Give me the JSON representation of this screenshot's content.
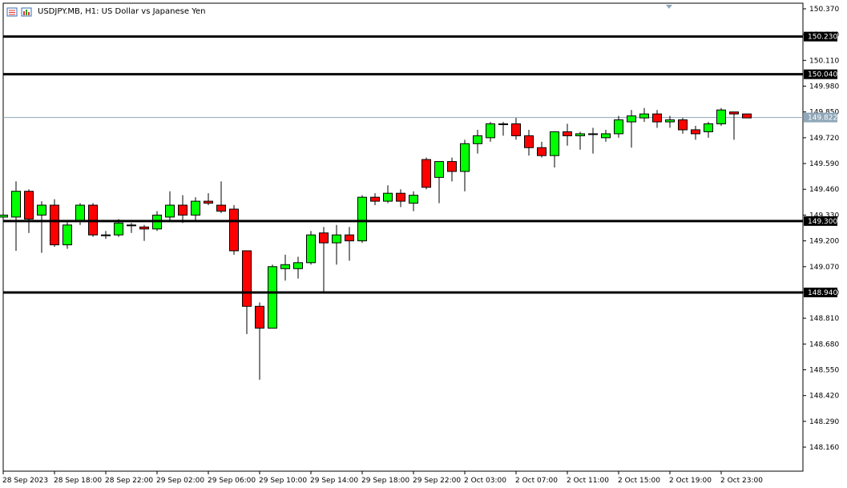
{
  "window": {
    "title": "USDJPY.MB, H1:  US Dollar vs Japanese Yen"
  },
  "colors": {
    "bull": "#00ff00",
    "bear": "#ff0000",
    "candle_outline": "#000000",
    "level_line": "#000000",
    "bid_line": "#8fa7b8",
    "grid": "none"
  },
  "icons": [
    "chart-window-icons"
  ],
  "chart_data": {
    "type": "candlestick",
    "symbol": "USDJPY.MB",
    "timeframe": "H1",
    "ylim": [
      148.1,
      150.4
    ],
    "y_ticks": [
      "150.370",
      "150.240",
      "150.110",
      "149.980",
      "149.850",
      "149.720",
      "149.590",
      "149.460",
      "149.330",
      "149.200",
      "149.070",
      "148.940",
      "148.810",
      "148.680",
      "148.550",
      "148.420",
      "148.290",
      "148.160"
    ],
    "x_ticks": [
      {
        "index": 0,
        "label": "28 Sep 2023"
      },
      {
        "index": 4,
        "label": "28 Sep 18:00"
      },
      {
        "index": 8,
        "label": "28 Sep 22:00"
      },
      {
        "index": 12,
        "label": "29 Sep 02:00"
      },
      {
        "index": 16,
        "label": "29 Sep 06:00"
      },
      {
        "index": 20,
        "label": "29 Sep 10:00"
      },
      {
        "index": 24,
        "label": "29 Sep 14:00"
      },
      {
        "index": 28,
        "label": "29 Sep 18:00"
      },
      {
        "index": 32,
        "label": "29 Sep 22:00"
      },
      {
        "index": 36,
        "label": "2 Oct 03:00"
      },
      {
        "index": 40,
        "label": "2 Oct 07:00"
      },
      {
        "index": 44,
        "label": "2 Oct 11:00"
      },
      {
        "index": 48,
        "label": "2 Oct 15:00"
      },
      {
        "index": 52,
        "label": "2 Oct 19:00"
      },
      {
        "index": 56,
        "label": "2 Oct 23:00"
      }
    ],
    "levels": [
      {
        "price": 150.23,
        "label": "150.230"
      },
      {
        "price": 150.04,
        "label": "150.040"
      },
      {
        "price": 149.3,
        "label": "149.300"
      },
      {
        "price": 148.94,
        "label": "148.940"
      }
    ],
    "bid": {
      "price": 149.822,
      "label": "149.822"
    },
    "candles": [
      {
        "o": 149.32,
        "h": 149.34,
        "l": 149.3,
        "c": 149.33
      },
      {
        "o": 149.32,
        "h": 149.5,
        "l": 149.15,
        "c": 149.45
      },
      {
        "o": 149.45,
        "h": 149.46,
        "l": 149.24,
        "c": 149.31
      },
      {
        "o": 149.33,
        "h": 149.4,
        "l": 149.14,
        "c": 149.38
      },
      {
        "o": 149.38,
        "h": 149.41,
        "l": 149.17,
        "c": 149.18
      },
      {
        "o": 149.18,
        "h": 149.3,
        "l": 149.16,
        "c": 149.28
      },
      {
        "o": 149.3,
        "h": 149.39,
        "l": 149.28,
        "c": 149.38
      },
      {
        "o": 149.38,
        "h": 149.39,
        "l": 149.22,
        "c": 149.23
      },
      {
        "o": 149.23,
        "h": 149.25,
        "l": 149.21,
        "c": 149.23
      },
      {
        "o": 149.23,
        "h": 149.31,
        "l": 149.22,
        "c": 149.29
      },
      {
        "o": 149.28,
        "h": 149.29,
        "l": 149.24,
        "c": 149.28
      },
      {
        "o": 149.27,
        "h": 149.28,
        "l": 149.2,
        "c": 149.26
      },
      {
        "o": 149.26,
        "h": 149.35,
        "l": 149.25,
        "c": 149.33
      },
      {
        "o": 149.32,
        "h": 149.45,
        "l": 149.3,
        "c": 149.38
      },
      {
        "o": 149.38,
        "h": 149.43,
        "l": 149.29,
        "c": 149.33
      },
      {
        "o": 149.33,
        "h": 149.42,
        "l": 149.3,
        "c": 149.4
      },
      {
        "o": 149.4,
        "h": 149.44,
        "l": 149.38,
        "c": 149.39
      },
      {
        "o": 149.38,
        "h": 149.5,
        "l": 149.34,
        "c": 149.35
      },
      {
        "o": 149.36,
        "h": 149.38,
        "l": 149.13,
        "c": 149.15
      },
      {
        "o": 149.15,
        "h": 149.15,
        "l": 148.73,
        "c": 148.87
      },
      {
        "o": 148.87,
        "h": 148.89,
        "l": 148.5,
        "c": 148.76
      },
      {
        "o": 148.76,
        "h": 149.08,
        "l": 148.76,
        "c": 149.07
      },
      {
        "o": 149.06,
        "h": 149.13,
        "l": 149.0,
        "c": 149.08
      },
      {
        "o": 149.06,
        "h": 149.12,
        "l": 149.01,
        "c": 149.09
      },
      {
        "o": 149.09,
        "h": 149.25,
        "l": 149.08,
        "c": 149.23
      },
      {
        "o": 149.24,
        "h": 149.27,
        "l": 148.94,
        "c": 149.19
      },
      {
        "o": 149.19,
        "h": 149.28,
        "l": 149.08,
        "c": 149.23
      },
      {
        "o": 149.23,
        "h": 149.27,
        "l": 149.1,
        "c": 149.2
      },
      {
        "o": 149.2,
        "h": 149.43,
        "l": 149.19,
        "c": 149.42
      },
      {
        "o": 149.42,
        "h": 149.44,
        "l": 149.38,
        "c": 149.4
      },
      {
        "o": 149.4,
        "h": 149.48,
        "l": 149.39,
        "c": 149.44
      },
      {
        "o": 149.44,
        "h": 149.46,
        "l": 149.37,
        "c": 149.4
      },
      {
        "o": 149.39,
        "h": 149.45,
        "l": 149.35,
        "c": 149.43
      },
      {
        "o": 149.61,
        "h": 149.62,
        "l": 149.46,
        "c": 149.47
      },
      {
        "o": 149.52,
        "h": 149.6,
        "l": 149.39,
        "c": 149.6
      },
      {
        "o": 149.6,
        "h": 149.62,
        "l": 149.5,
        "c": 149.55
      },
      {
        "o": 149.55,
        "h": 149.71,
        "l": 149.45,
        "c": 149.69
      },
      {
        "o": 149.69,
        "h": 149.76,
        "l": 149.64,
        "c": 149.73
      },
      {
        "o": 149.72,
        "h": 149.8,
        "l": 149.7,
        "c": 149.79
      },
      {
        "o": 149.79,
        "h": 149.8,
        "l": 149.73,
        "c": 149.79
      },
      {
        "o": 149.79,
        "h": 149.82,
        "l": 149.71,
        "c": 149.73
      },
      {
        "o": 149.73,
        "h": 149.76,
        "l": 149.63,
        "c": 149.67
      },
      {
        "o": 149.67,
        "h": 149.7,
        "l": 149.62,
        "c": 149.63
      },
      {
        "o": 149.63,
        "h": 149.75,
        "l": 149.57,
        "c": 149.75
      },
      {
        "o": 149.75,
        "h": 149.79,
        "l": 149.68,
        "c": 149.73
      },
      {
        "o": 149.73,
        "h": 149.75,
        "l": 149.66,
        "c": 149.74
      },
      {
        "o": 149.74,
        "h": 149.77,
        "l": 149.64,
        "c": 149.74
      },
      {
        "o": 149.72,
        "h": 149.76,
        "l": 149.7,
        "c": 149.74
      },
      {
        "o": 149.74,
        "h": 149.83,
        "l": 149.72,
        "c": 149.81
      },
      {
        "o": 149.8,
        "h": 149.86,
        "l": 149.67,
        "c": 149.83
      },
      {
        "o": 149.82,
        "h": 149.87,
        "l": 149.8,
        "c": 149.84
      },
      {
        "o": 149.84,
        "h": 149.86,
        "l": 149.77,
        "c": 149.8
      },
      {
        "o": 149.8,
        "h": 149.83,
        "l": 149.77,
        "c": 149.81
      },
      {
        "o": 149.81,
        "h": 149.82,
        "l": 149.74,
        "c": 149.76
      },
      {
        "o": 149.76,
        "h": 149.78,
        "l": 149.71,
        "c": 149.74
      },
      {
        "o": 149.75,
        "h": 149.8,
        "l": 149.72,
        "c": 149.79
      },
      {
        "o": 149.79,
        "h": 149.87,
        "l": 149.78,
        "c": 149.86
      },
      {
        "o": 149.85,
        "h": 149.85,
        "l": 149.71,
        "c": 149.84
      },
      {
        "o": 149.84,
        "h": 149.84,
        "l": 149.82,
        "c": 149.82
      }
    ]
  }
}
